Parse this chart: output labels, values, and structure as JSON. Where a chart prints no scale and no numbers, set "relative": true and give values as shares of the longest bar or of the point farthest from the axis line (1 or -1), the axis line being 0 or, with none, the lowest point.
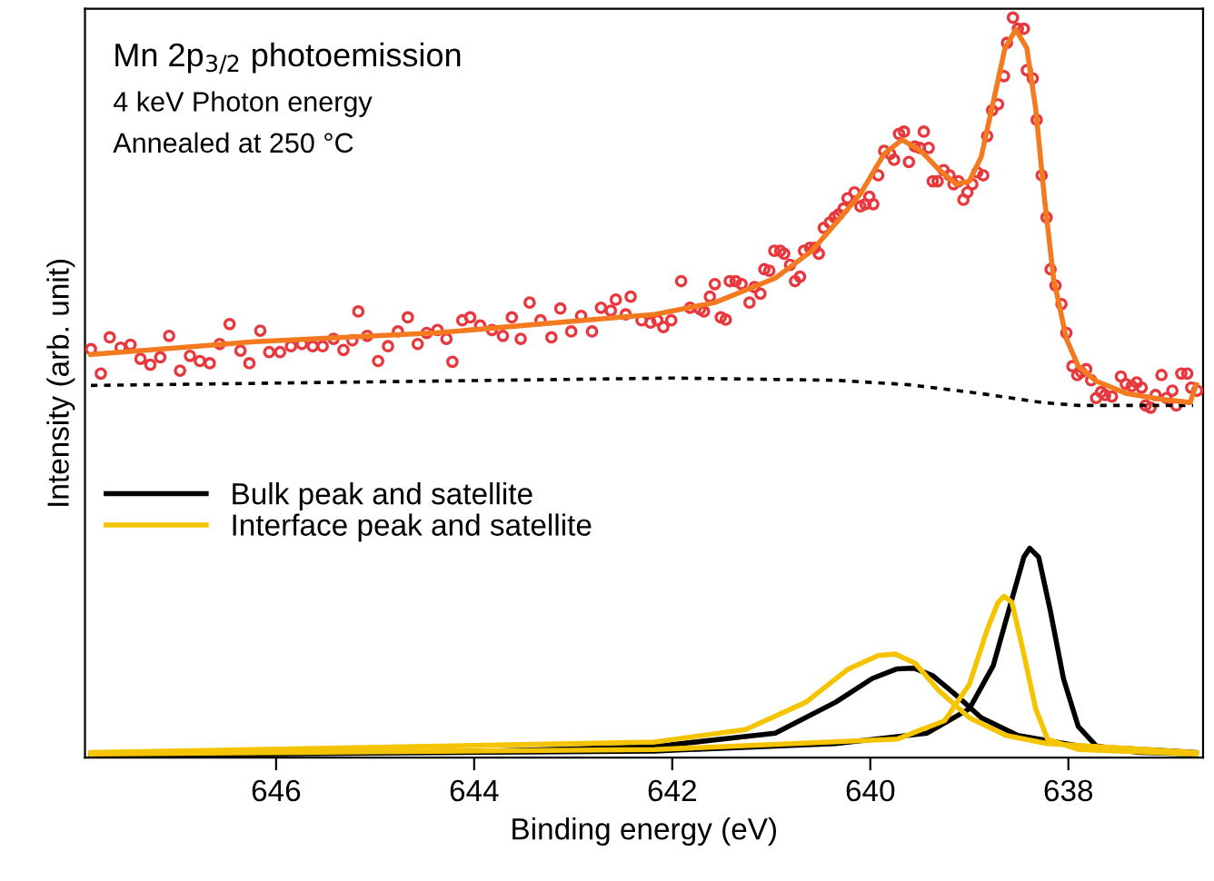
{
  "chart_data": {
    "type": "line",
    "relative": true,
    "title": "Mn 2p$_{3/2}$ photoemission",
    "annotations": [
      "4 keV Photon energy",
      "Annealed at 250 °C"
    ],
    "xlabel": "Binding energy (eV)",
    "ylabel": "Intensity (arb. unit)",
    "xlim": [
      647.93,
      636.64
    ],
    "xticks": [
      646,
      644,
      642,
      640,
      638
    ],
    "grid": false,
    "legend": "left",
    "series": [
      {
        "type": "scatter",
        "marker": "circle",
        "color": "#e8383d",
        "x": [
          647.87,
          647.77,
          647.68,
          647.57,
          647.47,
          647.37,
          647.27,
          647.17,
          647.08,
          646.97,
          646.87,
          646.77,
          646.67,
          646.57,
          646.47,
          646.36,
          646.27,
          646.16,
          646.07,
          645.96,
          645.85,
          645.74,
          645.63,
          645.53,
          645.42,
          645.32,
          645.23,
          645.17,
          645.08,
          644.97,
          644.87,
          644.77,
          644.67,
          644.57,
          644.48,
          644.37,
          644.28,
          644.22,
          644.12,
          644.04,
          643.94,
          643.82,
          643.71,
          643.62,
          643.53,
          643.44,
          643.33,
          643.22,
          643.13,
          643.02,
          642.92,
          642.81,
          642.72,
          642.62,
          642.57,
          642.47,
          642.42,
          642.31,
          642.22,
          642.15,
          642.09,
          642.01,
          641.91,
          641.82,
          641.72,
          641.68,
          641.62,
          641.57,
          641.51,
          641.46,
          641.42,
          641.36,
          641.3,
          641.22,
          641.17,
          641.11,
          641.07,
          641.02,
          640.97,
          640.91,
          640.87,
          640.81,
          640.76,
          640.71,
          640.67,
          640.61,
          640.56,
          640.52,
          640.47,
          640.41,
          640.36,
          640.32,
          640.27,
          640.23,
          640.16,
          640.1,
          640.05,
          640.01,
          639.97,
          639.92,
          639.86,
          639.8,
          639.76,
          639.71,
          639.66,
          639.61,
          639.55,
          639.5,
          639.46,
          639.41,
          639.37,
          639.32,
          639.26,
          639.2,
          639.16,
          639.11,
          639.06,
          639.02,
          638.97,
          638.92,
          638.86,
          638.82,
          638.77,
          638.71,
          638.65,
          638.62,
          638.56,
          638.51,
          638.45,
          638.42,
          638.36,
          638.32,
          638.27,
          638.22,
          638.18,
          638.13,
          638.07,
          638.02,
          637.96,
          637.91,
          637.87,
          637.82,
          637.77,
          637.72,
          637.67,
          637.63,
          637.56,
          637.47,
          637.42,
          637.36,
          637.31,
          637.26,
          637.22,
          637.17,
          637.12,
          637.06,
          637.01,
          636.95,
          636.91,
          636.86,
          636.8,
          636.76,
          636.7
        ],
        "values": [
          0.552,
          0.519,
          0.568,
          0.554,
          0.558,
          0.539,
          0.531,
          0.541,
          0.57,
          0.523,
          0.543,
          0.536,
          0.533,
          0.559,
          0.586,
          0.55,
          0.533,
          0.577,
          0.548,
          0.548,
          0.556,
          0.559,
          0.556,
          0.556,
          0.566,
          0.551,
          0.564,
          0.603,
          0.57,
          0.536,
          0.556,
          0.576,
          0.595,
          0.559,
          0.574,
          0.578,
          0.566,
          0.535,
          0.591,
          0.595,
          0.584,
          0.578,
          0.57,
          0.595,
          0.566,
          0.615,
          0.591,
          0.568,
          0.607,
          0.576,
          0.597,
          0.576,
          0.608,
          0.604,
          0.619,
          0.599,
          0.623,
          0.591,
          0.588,
          0.591,
          0.582,
          0.591,
          0.644,
          0.608,
          0.606,
          0.603,
          0.623,
          0.64,
          0.595,
          0.592,
          0.644,
          0.644,
          0.64,
          0.615,
          0.636,
          0.627,
          0.66,
          0.658,
          0.685,
          0.685,
          0.681,
          0.666,
          0.644,
          0.65,
          0.685,
          0.689,
          0.689,
          0.681,
          0.716,
          0.723,
          0.73,
          0.734,
          0.742,
          0.756,
          0.764,
          0.745,
          0.748,
          0.758,
          0.748,
          0.787,
          0.82,
          0.816,
          0.808,
          0.843,
          0.846,
          0.805,
          0.826,
          0.824,
          0.846,
          0.824,
          0.779,
          0.779,
          0.794,
          0.787,
          0.775,
          0.779,
          0.754,
          0.764,
          0.775,
          0.791,
          0.787,
          0.84,
          0.875,
          0.883,
          0.921,
          0.966,
          1.0,
          0.985,
          0.985,
          0.929,
          0.918,
          0.862,
          0.787,
          0.73,
          0.66,
          0.638,
          0.613,
          0.574,
          0.529,
          0.517,
          0.521,
          0.525,
          0.51,
          0.486,
          0.494,
          0.49,
          0.488,
          0.515,
          0.505,
          0.502,
          0.507,
          0.5,
          0.476,
          0.473,
          0.49,
          0.517,
          0.486,
          0.496,
          0.476,
          0.519,
          0.519,
          0.5,
          0.496
        ]
      },
      {
        "line_style": "dotted",
        "color": "#000000",
        "x": [
          647.87,
          642.0,
          640.35,
          639.61,
          638.88,
          638.27,
          637.9,
          636.74
        ],
        "values": [
          0.503,
          0.513,
          0.51,
          0.504,
          0.492,
          0.48,
          0.476,
          0.476
        ]
      },
      {
        "line_style": "solid",
        "color": "#f47a20",
        "x": [
          647.87,
          646.22,
          644.39,
          642.55,
          642.18,
          641.57,
          640.96,
          640.59,
          640.35,
          640.1,
          639.86,
          639.68,
          639.49,
          639.31,
          639.13,
          639.0,
          638.88,
          638.76,
          638.64,
          638.53,
          638.42,
          638.33,
          638.24,
          638.15,
          638.02,
          637.9,
          637.72,
          637.41,
          637.05,
          636.77,
          636.71
        ],
        "values": [
          0.545,
          0.562,
          0.574,
          0.595,
          0.599,
          0.615,
          0.648,
          0.685,
          0.722,
          0.762,
          0.816,
          0.835,
          0.82,
          0.795,
          0.775,
          0.779,
          0.812,
          0.885,
          0.959,
          0.984,
          0.959,
          0.877,
          0.754,
          0.648,
          0.566,
          0.529,
          0.509,
          0.492,
          0.484,
          0.48,
          0.504
        ]
      },
      {
        "line_style": "solid",
        "name": "Bulk peak and satellite",
        "color": "#000000",
        "x": [
          647.87,
          642.18,
          640.35,
          639.43,
          639.0,
          638.76,
          638.57,
          638.45,
          638.39,
          638.3,
          638.18,
          638.05,
          637.9,
          637.72,
          637.29,
          636.71
        ],
        "values": [
          0.003,
          0.009,
          0.019,
          0.033,
          0.066,
          0.124,
          0.214,
          0.271,
          0.283,
          0.271,
          0.197,
          0.107,
          0.042,
          0.016,
          0.007,
          0.005
        ]
      },
      {
        "line_style": "solid",
        "color": "#000000",
        "x": [
          647.87,
          643.77,
          642.18,
          640.96,
          640.35,
          639.98,
          639.73,
          639.56,
          639.37,
          639.12,
          638.88,
          638.51,
          637.9,
          636.71
        ],
        "values": [
          0.003,
          0.009,
          0.015,
          0.033,
          0.075,
          0.107,
          0.12,
          0.121,
          0.111,
          0.083,
          0.054,
          0.03,
          0.016,
          0.007
        ]
      },
      {
        "line_style": "solid",
        "name": "Interface peak and satellite",
        "color": "#f5c400",
        "x": [
          647.87,
          642.18,
          639.73,
          639.25,
          639.0,
          638.82,
          638.71,
          638.65,
          638.57,
          638.45,
          638.33,
          638.21,
          637.9,
          636.71
        ],
        "values": [
          0.005,
          0.011,
          0.025,
          0.05,
          0.099,
          0.173,
          0.21,
          0.218,
          0.21,
          0.14,
          0.066,
          0.025,
          0.011,
          0.005
        ]
      },
      {
        "line_style": "solid",
        "color": "#f5c400",
        "x": [
          647.87,
          643.77,
          642.18,
          641.26,
          640.65,
          640.22,
          639.92,
          639.75,
          639.55,
          639.31,
          639.0,
          638.63,
          638.21,
          636.71
        ],
        "values": [
          0.007,
          0.017,
          0.021,
          0.038,
          0.075,
          0.12,
          0.138,
          0.14,
          0.128,
          0.091,
          0.054,
          0.03,
          0.019,
          0.007
        ]
      }
    ]
  }
}
